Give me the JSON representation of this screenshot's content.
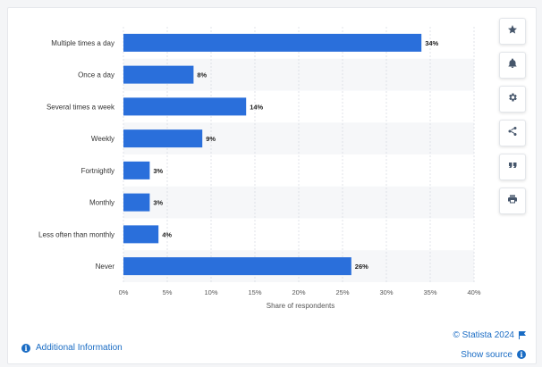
{
  "chart_data": {
    "type": "bar",
    "orientation": "horizontal",
    "categories": [
      "Multiple times a day",
      "Once a day",
      "Several times a week",
      "Weekly",
      "Fortnightly",
      "Monthly",
      "Less often than monthly",
      "Never"
    ],
    "values": [
      34,
      8,
      14,
      9,
      3,
      3,
      4,
      26
    ],
    "value_labels": [
      "34%",
      "8%",
      "14%",
      "9%",
      "3%",
      "3%",
      "4%",
      "26%"
    ],
    "xlim": [
      0,
      40
    ],
    "xticks": [
      "0%",
      "5%",
      "10%",
      "15%",
      "20%",
      "25%",
      "30%",
      "35%",
      "40%"
    ],
    "xlabel": "Share of respondents",
    "ylabel": "",
    "title": "",
    "grid": true,
    "bar_color": "#2a6fdb"
  },
  "toolbar": {
    "items": [
      {
        "icon": "star-icon",
        "name": "favorite-button"
      },
      {
        "icon": "bell-icon",
        "name": "notification-button"
      },
      {
        "icon": "gear-icon",
        "name": "settings-button"
      },
      {
        "icon": "share-icon",
        "name": "share-button"
      },
      {
        "icon": "quote-icon",
        "name": "cite-button"
      },
      {
        "icon": "print-icon",
        "name": "print-button"
      }
    ]
  },
  "footer": {
    "additional_info": "Additional Information",
    "copyright": "© Statista 2024",
    "show_source": "Show source"
  },
  "colors": {
    "accent": "#1a6cc4",
    "bar": "#2a6fdb",
    "stripe": "#f6f7f9"
  }
}
